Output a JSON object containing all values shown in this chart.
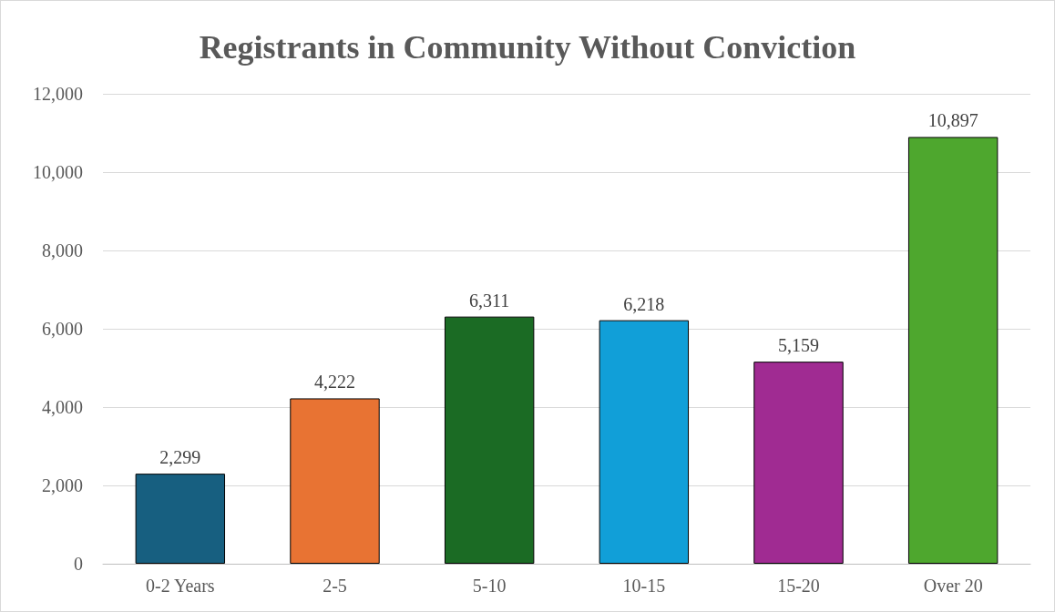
{
  "chart_data": {
    "type": "bar",
    "title": "Registrants in Community Without Conviction",
    "categories": [
      "0-2 Years",
      "2-5",
      "5-10",
      "10-15",
      "15-20",
      "Over 20"
    ],
    "values": [
      2299,
      4222,
      6311,
      6218,
      5159,
      10897
    ],
    "colors": [
      "#175f80",
      "#e87333",
      "#1b6b24",
      "#119fd8",
      "#a02b92",
      "#4ea72e"
    ],
    "value_labels": [
      "2,299",
      "4,222",
      "6,311",
      "6,218",
      "5,159",
      "10,897"
    ],
    "ylim": [
      0,
      12000
    ],
    "yticks": [
      {
        "value": 0,
        "label": "0"
      },
      {
        "value": 2000,
        "label": "2,000"
      },
      {
        "value": 4000,
        "label": "4,000"
      },
      {
        "value": 6000,
        "label": "6,000"
      },
      {
        "value": 8000,
        "label": "8,000"
      },
      {
        "value": 10000,
        "label": "10,000"
      },
      {
        "value": 12000,
        "label": "12,000"
      }
    ],
    "grid": "y"
  }
}
